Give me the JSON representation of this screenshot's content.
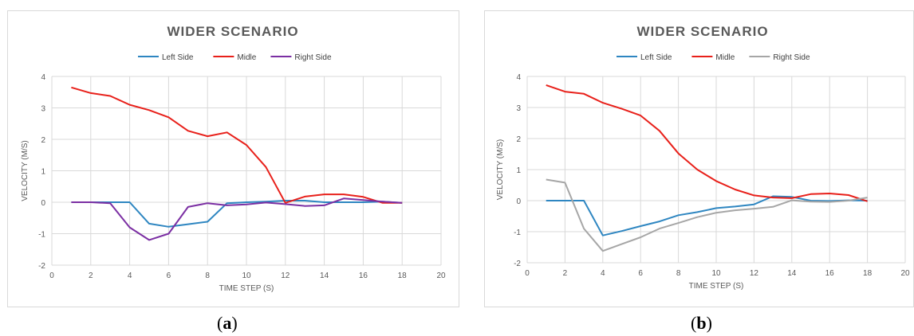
{
  "chart_data": [
    {
      "type": "line",
      "title": "WIDER SCENARIO",
      "xlabel": "TIME STEP (S)",
      "ylabel": "VELOCITY (M/S)",
      "xlim": [
        0,
        20
      ],
      "ylim": [
        -2,
        4
      ],
      "xticks": [
        0,
        2,
        4,
        6,
        8,
        10,
        12,
        14,
        16,
        18,
        20
      ],
      "yticks": [
        -2,
        -1,
        0,
        1,
        2,
        3,
        4
      ],
      "grid": true,
      "legend": "top",
      "x": [
        1,
        2,
        3,
        4,
        5,
        6,
        7,
        8,
        9,
        10,
        11,
        12,
        13,
        14,
        15,
        16,
        17,
        18
      ],
      "series": [
        {
          "name": "Left Side",
          "color": "#2e86c1",
          "values": [
            0,
            0,
            0,
            0,
            -0.68,
            -0.78,
            -0.7,
            -0.62,
            -0.03,
            0,
            0.02,
            0.05,
            0.05,
            0,
            0,
            0,
            0.02,
            -0.02
          ]
        },
        {
          "name": "Midle",
          "color": "#e8201a",
          "values": [
            3.65,
            3.47,
            3.38,
            3.1,
            2.93,
            2.7,
            2.27,
            2.1,
            2.22,
            1.82,
            1.12,
            -0.02,
            0.18,
            0.25,
            0.25,
            0.17,
            -0.02,
            -0.02
          ]
        },
        {
          "name": "Right Side",
          "color": "#7b2fa3",
          "values": [
            0,
            0,
            -0.03,
            -0.8,
            -1.2,
            -1.0,
            -0.15,
            -0.03,
            -0.1,
            -0.07,
            -0.01,
            -0.06,
            -0.12,
            -0.1,
            0.12,
            0.07,
            0.02,
            -0.02
          ]
        }
      ],
      "caption": "(a)"
    },
    {
      "type": "line",
      "title": "WIDER SCENARIO",
      "xlabel": "TIME STEP (S)",
      "ylabel": "VELOCITY (M/S)",
      "xlim": [
        0,
        20
      ],
      "ylim": [
        -2,
        4
      ],
      "xticks": [
        0,
        2,
        4,
        6,
        8,
        10,
        12,
        14,
        16,
        18,
        20
      ],
      "yticks": [
        -2,
        -1,
        0,
        1,
        2,
        3,
        4
      ],
      "grid": true,
      "legend": "top",
      "x": [
        1,
        2,
        3,
        4,
        5,
        6,
        7,
        8,
        9,
        10,
        11,
        12,
        13,
        14,
        15,
        16,
        17,
        18
      ],
      "series": [
        {
          "name": "Left Side",
          "color": "#2e86c1",
          "values": [
            0,
            0,
            0,
            -1.12,
            -0.98,
            -0.82,
            -0.67,
            -0.47,
            -0.37,
            -0.24,
            -0.19,
            -0.12,
            0.14,
            0.12,
            0,
            -0.01,
            0.01,
            0
          ]
        },
        {
          "name": "Midle",
          "color": "#e8201a",
          "values": [
            3.72,
            3.51,
            3.44,
            3.15,
            2.96,
            2.74,
            2.25,
            1.52,
            1.0,
            0.63,
            0.36,
            0.17,
            0.1,
            0.08,
            0.21,
            0.23,
            0.18,
            -0.02
          ]
        },
        {
          "name": "Right Side",
          "color": "#a6a6a6",
          "values": [
            0.68,
            0.58,
            -0.9,
            -1.62,
            -1.4,
            -1.18,
            -0.9,
            -0.72,
            -0.53,
            -0.39,
            -0.31,
            -0.26,
            -0.2,
            0.01,
            -0.03,
            -0.04,
            0,
            0.1
          ]
        }
      ],
      "caption": "(b)"
    }
  ]
}
